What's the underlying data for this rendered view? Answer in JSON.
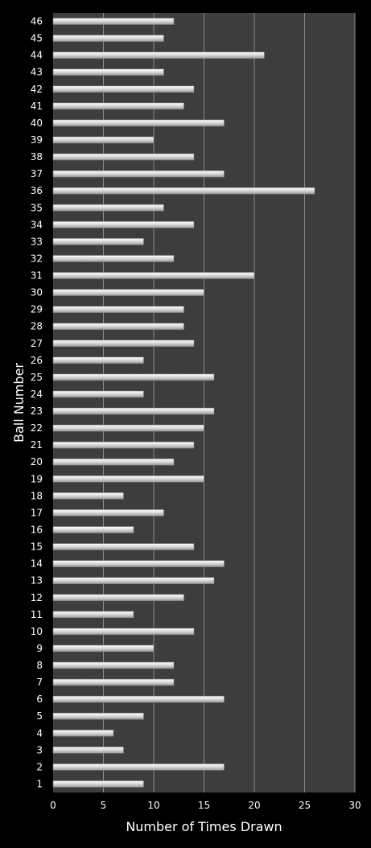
{
  "chart_data": {
    "type": "bar",
    "orientation": "horizontal",
    "categories": [
      "1",
      "2",
      "3",
      "4",
      "5",
      "6",
      "7",
      "8",
      "9",
      "10",
      "11",
      "12",
      "13",
      "14",
      "15",
      "16",
      "17",
      "18",
      "19",
      "20",
      "21",
      "22",
      "23",
      "24",
      "25",
      "26",
      "27",
      "28",
      "29",
      "30",
      "31",
      "32",
      "33",
      "34",
      "35",
      "36",
      "37",
      "38",
      "39",
      "40",
      "41",
      "42",
      "43",
      "44",
      "45",
      "46"
    ],
    "values": [
      9,
      17,
      7,
      6,
      9,
      17,
      12,
      12,
      10,
      14,
      8,
      13,
      16,
      17,
      14,
      8,
      11,
      7,
      15,
      12,
      14,
      15,
      16,
      9,
      16,
      9,
      14,
      13,
      13,
      15,
      20,
      12,
      9,
      14,
      11,
      26,
      17,
      14,
      10,
      17,
      13,
      14,
      11,
      21,
      11,
      12
    ],
    "xticks": [
      0,
      5,
      10,
      15,
      20,
      25,
      30
    ],
    "xlim": [
      0,
      30
    ],
    "xlabel": "Number of Times Drawn",
    "ylabel": "Ball Number",
    "grid": "vertical",
    "legend": "none",
    "colors": {
      "background": "#000000",
      "plot_area": "#3d3d3d",
      "grid": "#8a8a8a",
      "bar_light": "#ffffff",
      "bar_mid": "#dcdcdc",
      "bar_dark": "#9a9a9a",
      "text": "#ffffff"
    }
  }
}
